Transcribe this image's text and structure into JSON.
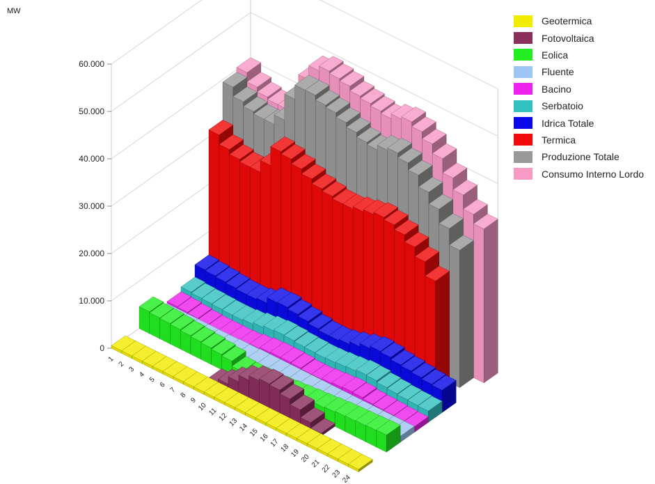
{
  "chart_data": {
    "type": "bar",
    "subtype": "3d-row-bars",
    "unit_label": "MW",
    "ylim": [
      0,
      60000
    ],
    "yticks": [
      "60.000",
      "50.000",
      "40.000",
      "30.000",
      "20.000",
      "10.000",
      "0"
    ],
    "categories": [
      "1",
      "2",
      "3",
      "4",
      "5",
      "6",
      "7",
      "8",
      "9",
      "10",
      "11",
      "12",
      "13",
      "14",
      "15",
      "16",
      "17",
      "18",
      "19",
      "20",
      "21",
      "22",
      "23",
      "24"
    ],
    "grid": true,
    "legend_position": "right",
    "series": [
      {
        "name": "Geotermica",
        "color": "#f2ec00",
        "values": [
          550,
          550,
          550,
          550,
          550,
          550,
          550,
          550,
          550,
          550,
          550,
          550,
          550,
          550,
          550,
          550,
          550,
          550,
          550,
          550,
          550,
          550,
          550,
          550
        ]
      },
      {
        "name": "Fotovoltaica",
        "color": "#8a2f5c",
        "values": [
          0,
          0,
          0,
          0,
          0,
          0,
          0,
          0,
          200,
          1200,
          2800,
          4200,
          5200,
          5600,
          5400,
          4600,
          3400,
          1800,
          600,
          0,
          0,
          0,
          0,
          0
        ]
      },
      {
        "name": "Eolica",
        "color": "#22ee22",
        "values": [
          4600,
          4400,
          4300,
          4100,
          3900,
          3700,
          3500,
          3200,
          2900,
          1800,
          1700,
          1800,
          1800,
          2000,
          2200,
          2400,
          2600,
          2800,
          3000,
          3200,
          3300,
          3400,
          3500,
          3600
        ]
      },
      {
        "name": "Fluente",
        "color": "#9ec6f2",
        "values": [
          1100,
          1100,
          1100,
          1100,
          1100,
          1100,
          1100,
          1200,
          1200,
          1300,
          1300,
          1300,
          1300,
          1300,
          1300,
          1300,
          1300,
          1300,
          1300,
          1300,
          1300,
          1300,
          1300,
          1300
        ]
      },
      {
        "name": "Bacino",
        "color": "#ee22ee",
        "values": [
          1500,
          1400,
          1200,
          1000,
          900,
          900,
          900,
          1000,
          1300,
          1600,
          1700,
          1700,
          1600,
          1400,
          1400,
          1600,
          1800,
          2000,
          1900,
          1600,
          1500,
          1400,
          1300,
          1200
        ]
      },
      {
        "name": "Serbatoio",
        "color": "#33c0c0",
        "values": [
          2500,
          2300,
          2200,
          2100,
          2000,
          2000,
          2200,
          2600,
          3000,
          3200,
          3100,
          2900,
          2800,
          2700,
          2800,
          3000,
          3200,
          3500,
          3400,
          3000,
          2800,
          2600,
          2500,
          2400
        ]
      },
      {
        "name": "Idrica Totale",
        "color": "#0a0ae8",
        "values": [
          5100,
          4900,
          4700,
          4500,
          4300,
          4300,
          4600,
          5800,
          5900,
          5500,
          5100,
          4600,
          4300,
          4300,
          4600,
          5200,
          5900,
          6400,
          6200,
          5700,
          5500,
          5200,
          4900,
          4700
        ]
      },
      {
        "name": "Termica",
        "color": "#f00a0a",
        "values": [
          31500,
          29500,
          28500,
          28000,
          28000,
          30500,
          34500,
          34000,
          33000,
          32000,
          31000,
          30500,
          30000,
          30000,
          30500,
          31000,
          31500,
          31000,
          30000,
          28500,
          26500,
          23500,
          0,
          0
        ]
      },
      {
        "name": "Produzione Totale",
        "color": "#999999",
        "values": [
          39500,
          37500,
          36500,
          36000,
          36000,
          38000,
          43500,
          46500,
          46500,
          45500,
          45000,
          44000,
          43000,
          42000,
          41500,
          42500,
          43000,
          42000,
          40500,
          38000,
          35500,
          32500,
          29000,
          0
        ]
      },
      {
        "name": "Consumo Interno Lordo",
        "color": "#f79ac6",
        "values": [
          40500,
          38500,
          37500,
          37000,
          37000,
          40000,
          45500,
          48500,
          49500,
          49000,
          48500,
          47500,
          47000,
          46500,
          46000,
          47000,
          47500,
          46500,
          45000,
          43000,
          40000,
          37500,
          34500,
          32500
        ]
      }
    ]
  }
}
